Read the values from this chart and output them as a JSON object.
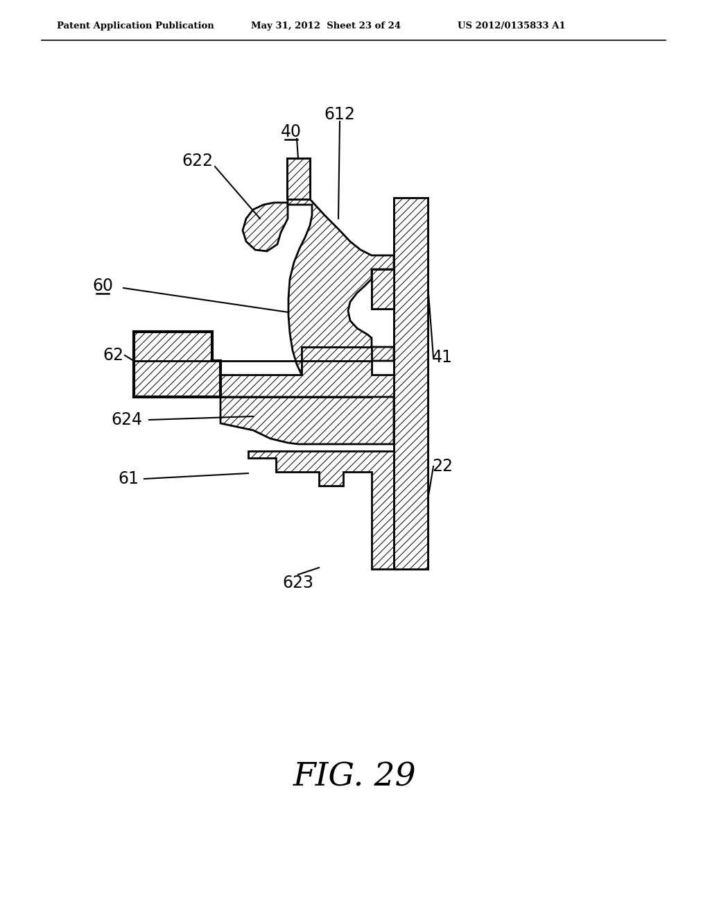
{
  "header_left": "Patent Application Publication",
  "header_center": "May 31, 2012  Sheet 23 of 24",
  "header_right": "US 2012/0135833 A1",
  "fig_label": "FIG. 29",
  "bg_color": "#ffffff",
  "line_color": "#000000",
  "hatch_pattern": "///",
  "hatch_lw": 0.7,
  "border_lw": 2.0,
  "label_fontsize": 17,
  "header_fontsize": 9.5,
  "fig_fontsize": 34
}
